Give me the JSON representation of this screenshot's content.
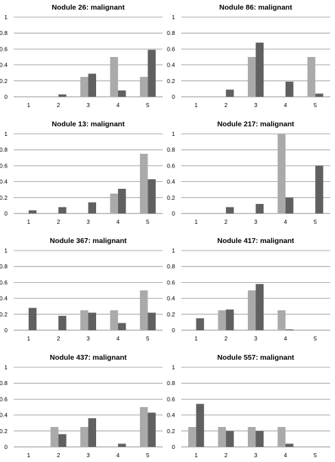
{
  "colors": {
    "series_a": "#aaaaaa",
    "series_b": "#606060",
    "axis": "#8c8c8c",
    "grid": "#8c8c8c"
  },
  "chart_data": [
    {
      "type": "bar",
      "title": "Nodule 26: malignant",
      "categories": [
        "1",
        "2",
        "3",
        "4",
        "5"
      ],
      "ylim": [
        0,
        1
      ],
      "yticks": [
        "0",
        "0.2",
        "0.4",
        "0.6",
        "0.8",
        "1"
      ],
      "grid": true,
      "series": [
        {
          "values": [
            0,
            0,
            0.25,
            0.5,
            0.25
          ]
        },
        {
          "values": [
            0,
            0.03,
            0.29,
            0.08,
            0.59
          ]
        }
      ]
    },
    {
      "type": "bar",
      "title": "Nodule 86: malignant",
      "categories": [
        "1",
        "2",
        "3",
        "4",
        "5"
      ],
      "ylim": [
        0,
        1
      ],
      "yticks": [
        "0",
        "0.2",
        "0.4",
        "0.6",
        "0.8",
        "1"
      ],
      "grid": true,
      "series": [
        {
          "values": [
            0,
            0,
            0.5,
            0,
            0.5
          ]
        },
        {
          "values": [
            0,
            0.09,
            0.68,
            0.19,
            0.04
          ]
        }
      ]
    },
    {
      "type": "bar",
      "title": "Nodule 13: malignant",
      "categories": [
        "1",
        "2",
        "3",
        "4",
        "5"
      ],
      "ylim": [
        0,
        1
      ],
      "yticks": [
        "0",
        "0.2",
        "0.4",
        "0.6",
        "0.8",
        "1"
      ],
      "grid": true,
      "series": [
        {
          "values": [
            0,
            0,
            0,
            0.25,
            0.75
          ]
        },
        {
          "values": [
            0.04,
            0.08,
            0.14,
            0.31,
            0.43
          ]
        }
      ]
    },
    {
      "type": "bar",
      "title": "Nodule 217: malignant",
      "categories": [
        "1",
        "2",
        "3",
        "4",
        "5"
      ],
      "ylim": [
        0,
        1
      ],
      "yticks": [
        "0",
        "0.2",
        "0.4",
        "0.6",
        "0.8",
        "1"
      ],
      "grid": true,
      "series": [
        {
          "values": [
            0,
            0,
            0,
            1.0,
            0
          ]
        },
        {
          "values": [
            0,
            0.08,
            0.12,
            0.2,
            0.6
          ]
        }
      ]
    },
    {
      "type": "bar",
      "title": "Nodule 367: malignant",
      "categories": [
        "1",
        "2",
        "3",
        "4",
        "5"
      ],
      "ylim": [
        0,
        1
      ],
      "yticks": [
        "0",
        "0.2",
        "0.4",
        "0.6",
        "0.8",
        "1"
      ],
      "grid": true,
      "series": [
        {
          "values": [
            0,
            0,
            0.25,
            0.25,
            0.5
          ]
        },
        {
          "values": [
            0.28,
            0.18,
            0.22,
            0.09,
            0.22
          ]
        }
      ]
    },
    {
      "type": "bar",
      "title": "Nodule 417: malignant",
      "categories": [
        "1",
        "2",
        "3",
        "4",
        "5"
      ],
      "ylim": [
        0,
        1
      ],
      "yticks": [
        "0",
        "0.2",
        "0.4",
        "0.6",
        "0.8",
        "1"
      ],
      "grid": true,
      "series": [
        {
          "values": [
            0,
            0.25,
            0.5,
            0.25,
            0
          ]
        },
        {
          "values": [
            0.15,
            0.26,
            0.58,
            0.01,
            0
          ]
        }
      ]
    },
    {
      "type": "bar",
      "title": "Nodule 437: malignant",
      "categories": [
        "1",
        "2",
        "3",
        "4",
        "5"
      ],
      "ylim": [
        0,
        1
      ],
      "yticks": [
        "0",
        "0.2",
        "0.4",
        "0.6",
        "0.8",
        "1"
      ],
      "grid": true,
      "series": [
        {
          "values": [
            0,
            0.25,
            0.25,
            0,
            0.5
          ]
        },
        {
          "values": [
            0,
            0.16,
            0.36,
            0.04,
            0.43
          ]
        }
      ]
    },
    {
      "type": "bar",
      "title": "Nodule 557: malignant",
      "categories": [
        "1",
        "2",
        "3",
        "4",
        "5"
      ],
      "ylim": [
        0,
        1
      ],
      "yticks": [
        "0",
        "0.2",
        "0.4",
        "0.6",
        "0.8",
        "1"
      ],
      "grid": true,
      "series": [
        {
          "values": [
            0.25,
            0.25,
            0.25,
            0.25,
            0
          ]
        },
        {
          "values": [
            0.54,
            0.2,
            0.2,
            0.04,
            0
          ]
        }
      ]
    }
  ]
}
